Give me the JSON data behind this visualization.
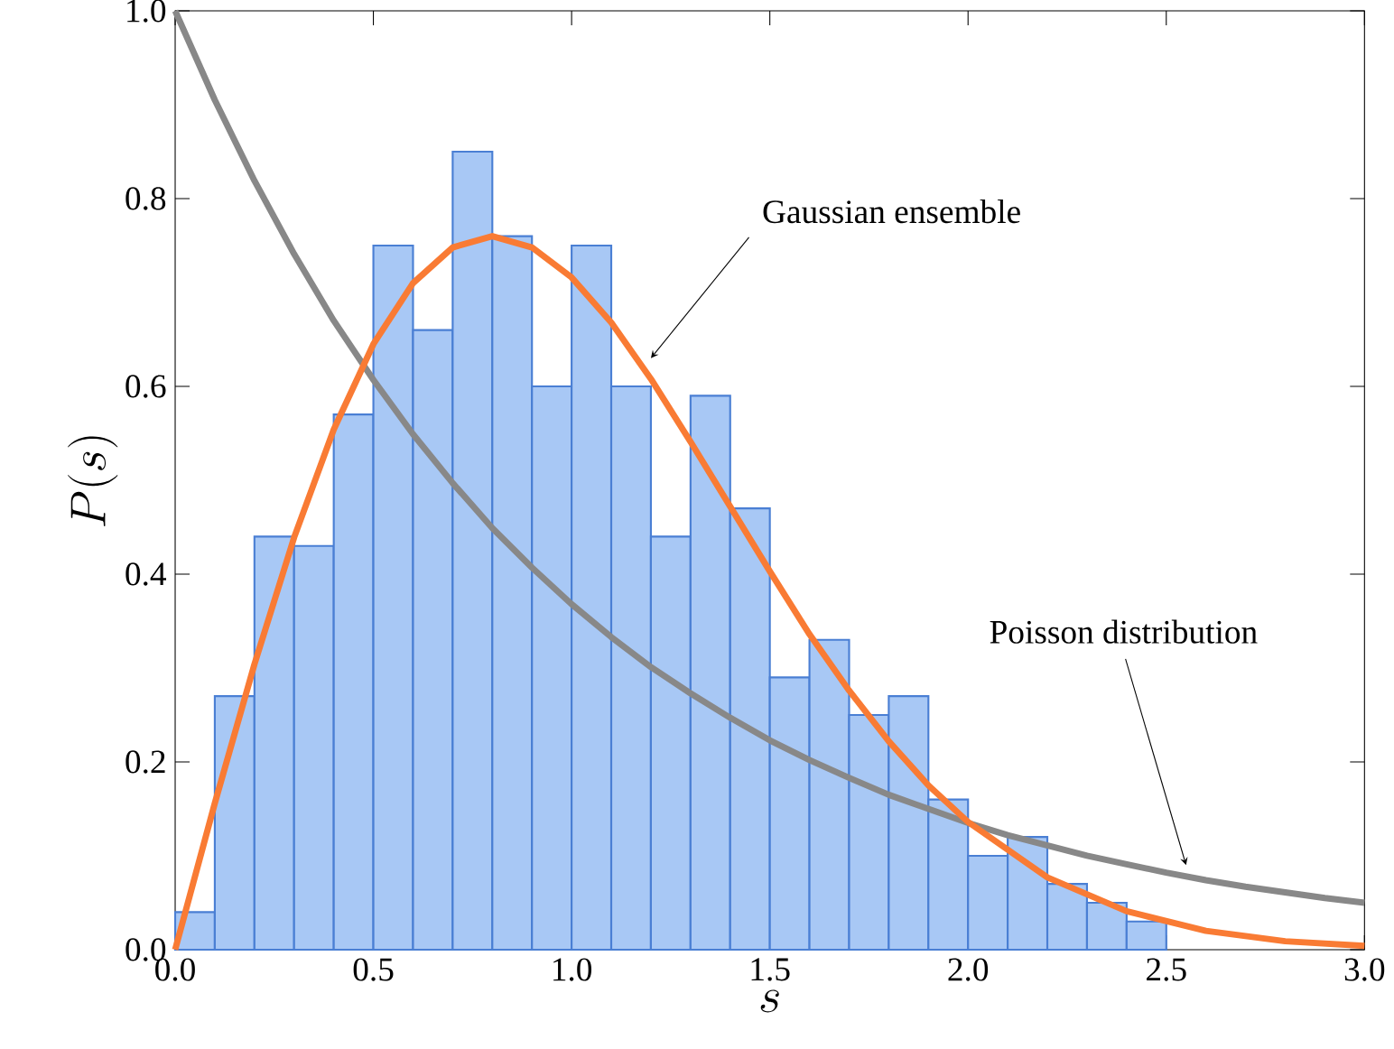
{
  "chart_data": {
    "type": "histogram",
    "xlabel": "s",
    "ylabel": "P(s)",
    "bins": [
      0.0,
      0.1,
      0.2,
      0.3,
      0.4,
      0.5,
      0.6,
      0.7,
      0.8,
      0.9,
      1.0,
      1.1,
      1.2,
      1.3,
      1.4,
      1.5,
      1.6,
      1.7,
      1.8,
      1.9,
      2.0,
      2.1,
      2.2,
      2.3,
      2.4,
      2.5
    ],
    "values": [
      0.04,
      0.27,
      0.44,
      0.43,
      0.57,
      0.75,
      0.66,
      0.85,
      0.76,
      0.6,
      0.75,
      0.6,
      0.44,
      0.59,
      0.47,
      0.29,
      0.33,
      0.25,
      0.27,
      0.16,
      0.1,
      0.12,
      0.07,
      0.05,
      0.03
    ],
    "color": "#a8c8f5",
    "series": [
      {
        "type": "line",
        "color": "#888888",
        "x": [
          0.0,
          0.1,
          0.2,
          0.3,
          0.4,
          0.5,
          0.6,
          0.7,
          0.8,
          0.9,
          1.0,
          1.1,
          1.2,
          1.3,
          1.4,
          1.5,
          1.6,
          1.7,
          1.8,
          1.9,
          2.0,
          2.1,
          2.2,
          2.3,
          2.4,
          2.5,
          2.6,
          2.7,
          2.8,
          2.9,
          3.0
        ],
        "values": [
          1.0,
          0.905,
          0.819,
          0.741,
          0.67,
          0.607,
          0.549,
          0.497,
          0.449,
          0.407,
          0.368,
          0.333,
          0.301,
          0.273,
          0.247,
          0.223,
          0.202,
          0.183,
          0.165,
          0.15,
          0.135,
          0.122,
          0.111,
          0.1,
          0.091,
          0.082,
          0.074,
          0.067,
          0.061,
          0.055,
          0.05
        ]
      },
      {
        "type": "line",
        "color": "#f97b34",
        "x": [
          0.0,
          0.1,
          0.2,
          0.3,
          0.4,
          0.5,
          0.6,
          0.7,
          0.8,
          0.9,
          1.0,
          1.1,
          1.2,
          1.3,
          1.4,
          1.5,
          1.6,
          1.7,
          1.8,
          1.9,
          2.0,
          2.2,
          2.4,
          2.6,
          2.8,
          3.0
        ],
        "values": [
          0.0,
          0.156,
          0.304,
          0.439,
          0.554,
          0.645,
          0.71,
          0.748,
          0.76,
          0.748,
          0.716,
          0.668,
          0.608,
          0.541,
          0.472,
          0.403,
          0.336,
          0.276,
          0.222,
          0.175,
          0.136,
          0.077,
          0.041,
          0.02,
          0.009,
          0.004
        ]
      }
    ],
    "annotations": [
      {
        "text": "Gaussian ensemble",
        "x": 1.2,
        "y": 0.63
      },
      {
        "text": "Poisson distribution",
        "x": 2.55,
        "y": 0.09
      }
    ],
    "xlim": [
      0,
      3
    ],
    "ylim": [
      0,
      1
    ],
    "xticks": [
      {
        "value": 0,
        "label": "0.0"
      },
      {
        "value": 0.5,
        "label": "0.5"
      },
      {
        "value": 1,
        "label": "1.0"
      },
      {
        "value": 1.5,
        "label": "1.5"
      },
      {
        "value": 2,
        "label": "2.0"
      },
      {
        "value": 2.5,
        "label": "2.5"
      },
      {
        "value": 3,
        "label": "3.0"
      }
    ],
    "yticks": [
      {
        "value": 0,
        "label": "0.0"
      },
      {
        "value": 0.2,
        "label": "0.2"
      },
      {
        "value": 0.4,
        "label": "0.4"
      },
      {
        "value": 0.6,
        "label": "0.6"
      },
      {
        "value": 0.8,
        "label": "0.8"
      },
      {
        "value": 1,
        "label": "1.0"
      }
    ]
  }
}
